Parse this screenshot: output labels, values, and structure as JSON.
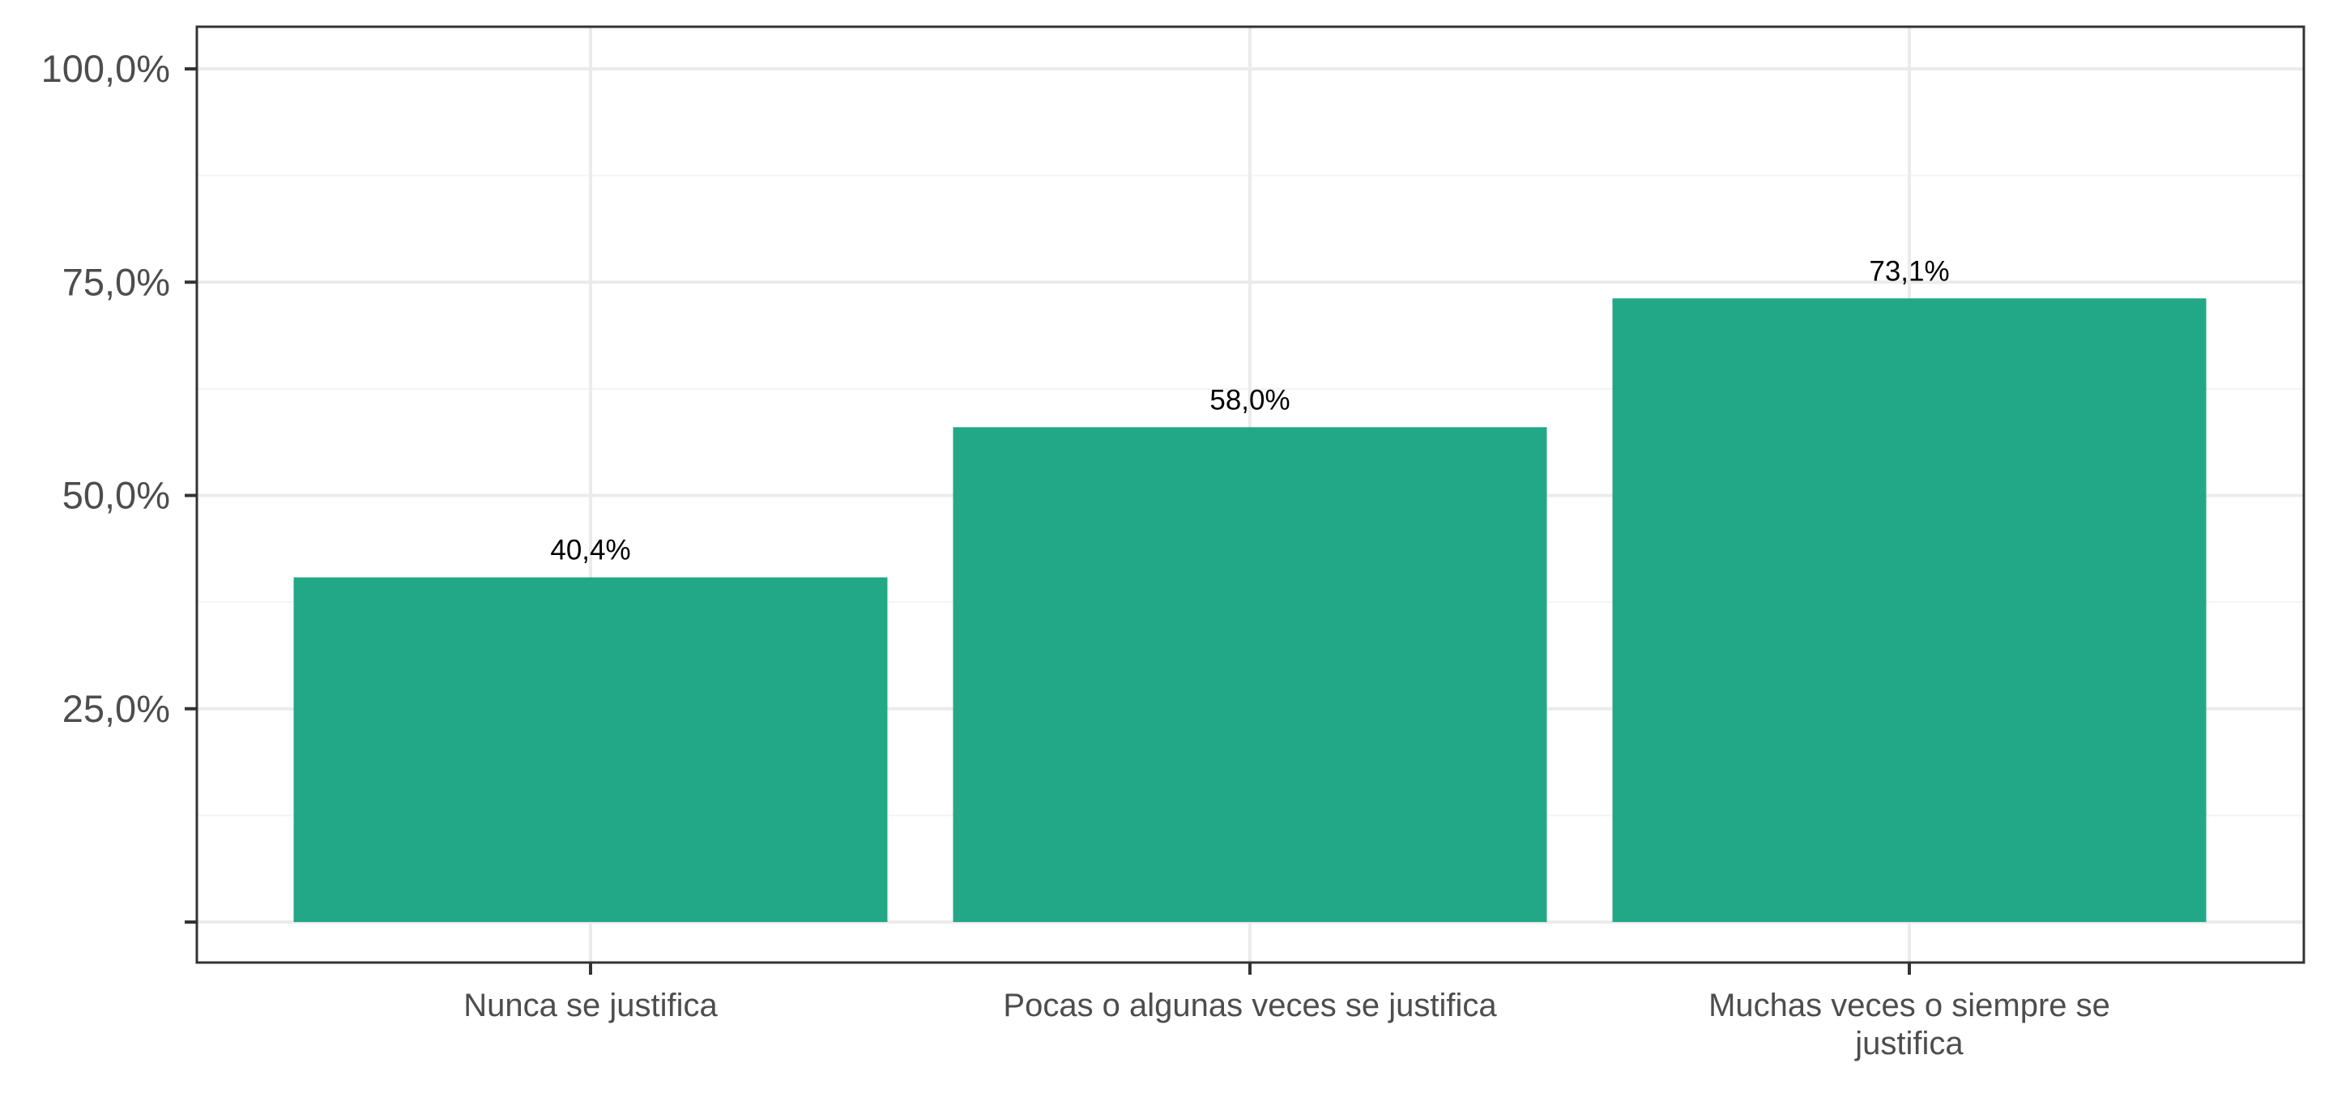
{
  "chart_data": {
    "type": "bar",
    "title": "",
    "xlabel": "",
    "ylabel": "",
    "categories": [
      "Nunca se justifica",
      "Pocas o algunas veces se justifica",
      "Muchas veces o siempre se justifica"
    ],
    "category_lines": [
      [
        "Nunca se justifica"
      ],
      [
        "Pocas o algunas veces se justifica"
      ],
      [
        "Muchas veces o siempre se",
        "justifica"
      ]
    ],
    "values": [
      40.4,
      58.0,
      73.1
    ],
    "data_labels": [
      "40,4%",
      "58,0%",
      "73,1%"
    ],
    "ylim": [
      0,
      100
    ],
    "yticks": [
      0,
      25,
      50,
      75,
      100
    ],
    "ytick_labels": [
      "",
      "25,0%",
      "50,0%",
      "75,0%",
      "100,0%"
    ],
    "grid": true,
    "legend": "none",
    "colors": {
      "bar": "#23a887",
      "grid_major": "#ebebeb",
      "grid_minor": "#f3f3f3",
      "frame": "#333333",
      "tick_text": "#4d4d4d",
      "label_text": "#000000"
    }
  }
}
